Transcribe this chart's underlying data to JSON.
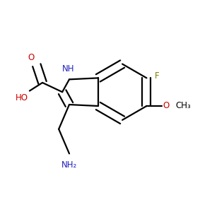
{
  "background_color": "#ffffff",
  "bond_color": "#000000",
  "text_color": "#000000",
  "labels": {
    "NH": {
      "text": "NH",
      "color": "#2020c0"
    },
    "F": {
      "text": "F",
      "color": "#808000"
    },
    "OCH3_O": {
      "text": "O",
      "color": "#cc0000"
    },
    "OCH3_CH3": {
      "text": "CH₃",
      "color": "#000000"
    },
    "COOH_O1": {
      "text": "O",
      "color": "#cc0000"
    },
    "COOH_OH": {
      "text": "HO",
      "color": "#cc0000"
    },
    "NH2": {
      "text": "NH₂",
      "color": "#2020c0"
    }
  }
}
